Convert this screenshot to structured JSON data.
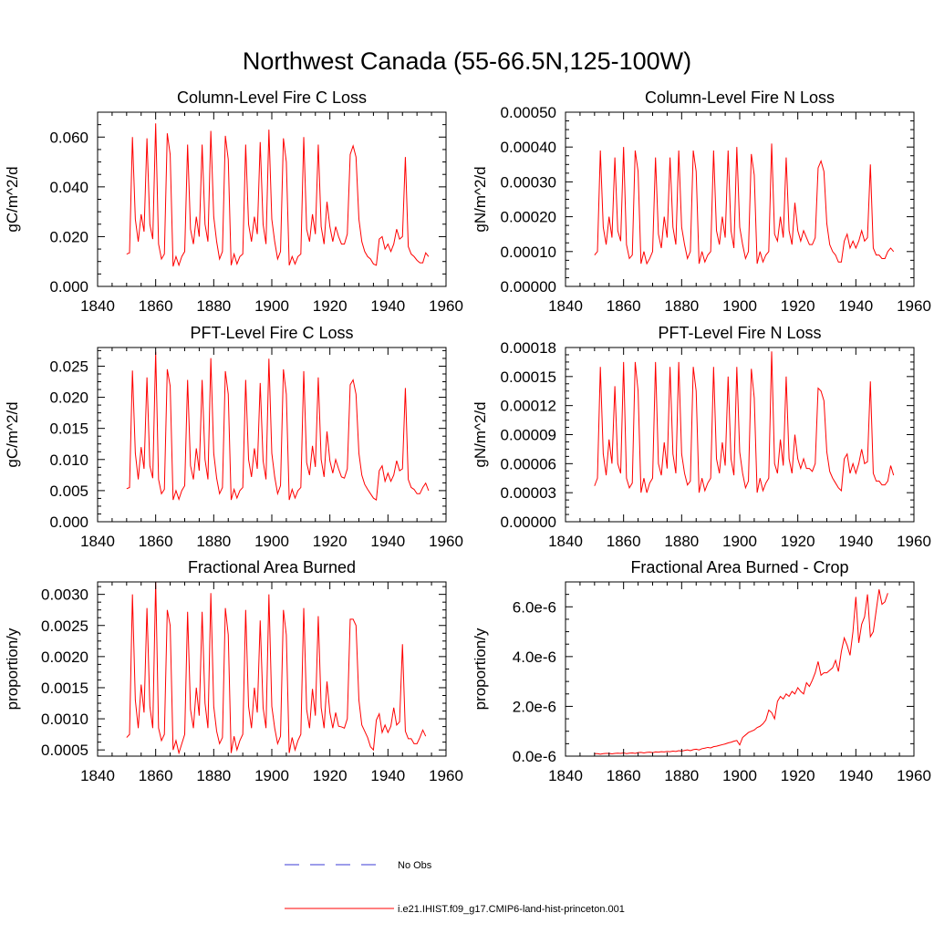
{
  "title": "Northwest Canada (55-66.5N,125-100W)",
  "legend": {
    "obs_label": "No Obs",
    "obs_color": "#3b3bd6",
    "model_label": "i.e21.IHIST.f09_g17.CMIP6-land-hist-princeton.001",
    "model_color": "#ff0000"
  },
  "chart_data": [
    {
      "type": "line",
      "title": "Column-Level Fire C Loss",
      "ylabel": "gC/m^2/d",
      "xlim": [
        1840,
        1960
      ],
      "ylim": [
        0,
        0.07
      ],
      "x_ticks": [
        "1840",
        "1860",
        "1880",
        "1900",
        "1920",
        "1940",
        "1960"
      ],
      "y_ticks": [
        {
          "v": 0.0,
          "label": "0.000"
        },
        {
          "v": 0.02,
          "label": "0.020"
        },
        {
          "v": 0.04,
          "label": "0.040"
        },
        {
          "v": 0.06,
          "label": "0.060"
        }
      ],
      "x_start": 1850,
      "series": [
        {
          "color": "#ff0000",
          "values": [
            0.013,
            0.0135,
            0.06,
            0.027,
            0.018,
            0.029,
            0.022,
            0.0595,
            0.025,
            0.019,
            0.0655,
            0.017,
            0.011,
            0.013,
            0.0615,
            0.053,
            0.008,
            0.012,
            0.0085,
            0.012,
            0.014,
            0.057,
            0.023,
            0.017,
            0.028,
            0.02,
            0.057,
            0.025,
            0.018,
            0.0625,
            0.028,
            0.018,
            0.011,
            0.014,
            0.0605,
            0.051,
            0.0085,
            0.013,
            0.009,
            0.012,
            0.013,
            0.057,
            0.025,
            0.018,
            0.028,
            0.021,
            0.058,
            0.025,
            0.017,
            0.063,
            0.027,
            0.018,
            0.011,
            0.014,
            0.0595,
            0.05,
            0.0085,
            0.012,
            0.009,
            0.012,
            0.013,
            0.06,
            0.023,
            0.018,
            0.029,
            0.021,
            0.057,
            0.024,
            0.017,
            0.034,
            0.024,
            0.018,
            0.024,
            0.02,
            0.017,
            0.017,
            0.021,
            0.053,
            0.0565,
            0.052,
            0.027,
            0.018,
            0.014,
            0.012,
            0.011,
            0.009,
            0.0085,
            0.019,
            0.02,
            0.015,
            0.017,
            0.014,
            0.017,
            0.023,
            0.019,
            0.02,
            0.052,
            0.016,
            0.013,
            0.012,
            0.0105,
            0.0095,
            0.0095,
            0.0135,
            0.012
          ]
        }
      ]
    },
    {
      "type": "line",
      "title": "Column-Level Fire N Loss",
      "ylabel": "gN/m^2/d",
      "xlim": [
        1840,
        1960
      ],
      "ylim": [
        0,
        0.0005
      ],
      "x_ticks": [
        "1840",
        "1860",
        "1880",
        "1900",
        "1920",
        "1940",
        "1960"
      ],
      "y_ticks": [
        {
          "v": 0.0,
          "label": "0.00000"
        },
        {
          "v": 0.0001,
          "label": "0.00010"
        },
        {
          "v": 0.0002,
          "label": "0.00020"
        },
        {
          "v": 0.0003,
          "label": "0.00030"
        },
        {
          "v": 0.0004,
          "label": "0.00040"
        },
        {
          "v": 0.0005,
          "label": "0.00050"
        }
      ],
      "x_start": 1850,
      "series": [
        {
          "color": "#ff0000",
          "values": [
            9e-05,
            0.0001,
            0.00039,
            0.00017,
            0.00012,
            0.0002,
            0.00014,
            0.00037,
            0.00016,
            0.00013,
            0.0004,
            0.00012,
            8e-05,
            9e-05,
            0.00039,
            0.00033,
            6.5e-05,
            0.0001,
            6.5e-05,
            8e-05,
            0.0001,
            0.00037,
            0.00015,
            0.00011,
            0.0002,
            0.00014,
            0.00037,
            0.00017,
            0.00012,
            0.00039,
            0.00017,
            0.00012,
            8e-05,
            0.0001,
            0.00039,
            0.00033,
            6.5e-05,
            0.0001,
            7e-05,
            9e-05,
            0.0001,
            0.00039,
            0.00016,
            0.00012,
            0.0002,
            0.00014,
            0.00039,
            0.00016,
            0.00011,
            0.0004,
            0.00017,
            0.00012,
            8e-05,
            0.0001,
            0.00038,
            0.00032,
            6.5e-05,
            0.0001,
            7e-05,
            9e-05,
            0.0001,
            0.00041,
            0.00015,
            0.00013,
            0.0002,
            0.00014,
            0.00037,
            0.00016,
            0.00012,
            0.00024,
            0.00016,
            0.00013,
            0.00016,
            0.00014,
            0.00012,
            0.00012,
            0.00014,
            0.00034,
            0.00036,
            0.00033,
            0.00018,
            0.00012,
            0.0001,
            9e-05,
            7e-05,
            7e-05,
            0.00013,
            0.00015,
            0.00011,
            0.00013,
            0.00011,
            0.00013,
            0.00016,
            0.00013,
            0.00014,
            0.00035,
            0.00011,
            9e-05,
            9e-05,
            8e-05,
            8e-05,
            0.0001,
            0.00011,
            0.0001
          ]
        }
      ]
    },
    {
      "type": "line",
      "title": "PFT-Level Fire C Loss",
      "ylabel": "gC/m^2/d",
      "xlim": [
        1840,
        1960
      ],
      "ylim": [
        0,
        0.028
      ],
      "x_ticks": [
        "1840",
        "1860",
        "1880",
        "1900",
        "1920",
        "1940",
        "1960"
      ],
      "y_ticks": [
        {
          "v": 0.0,
          "label": "0.000"
        },
        {
          "v": 0.005,
          "label": "0.005"
        },
        {
          "v": 0.01,
          "label": "0.010"
        },
        {
          "v": 0.015,
          "label": "0.015"
        },
        {
          "v": 0.02,
          "label": "0.020"
        },
        {
          "v": 0.025,
          "label": "0.025"
        }
      ],
      "x_start": 1850,
      "series": [
        {
          "color": "#ff0000",
          "values": [
            0.0053,
            0.0055,
            0.0243,
            0.011,
            0.0068,
            0.012,
            0.0085,
            0.0232,
            0.009,
            0.007,
            0.0273,
            0.0068,
            0.0045,
            0.0052,
            0.0245,
            0.0218,
            0.0035,
            0.005,
            0.0036,
            0.005,
            0.0058,
            0.0228,
            0.009,
            0.0068,
            0.0118,
            0.0082,
            0.0228,
            0.01,
            0.0068,
            0.0263,
            0.011,
            0.007,
            0.0045,
            0.0055,
            0.0242,
            0.0205,
            0.0035,
            0.0052,
            0.0038,
            0.005,
            0.0055,
            0.0228,
            0.01,
            0.0072,
            0.0118,
            0.0085,
            0.0223,
            0.0098,
            0.0068,
            0.0262,
            0.011,
            0.0072,
            0.0045,
            0.0058,
            0.0245,
            0.0205,
            0.0035,
            0.0052,
            0.0038,
            0.005,
            0.0055,
            0.0242,
            0.0095,
            0.0075,
            0.0122,
            0.0088,
            0.0232,
            0.01,
            0.0072,
            0.0145,
            0.0098,
            0.0078,
            0.01,
            0.0085,
            0.0072,
            0.007,
            0.0085,
            0.022,
            0.0228,
            0.0205,
            0.011,
            0.0075,
            0.006,
            0.0052,
            0.0045,
            0.0038,
            0.0035,
            0.0082,
            0.009,
            0.0065,
            0.0078,
            0.0065,
            0.0075,
            0.0098,
            0.0082,
            0.0085,
            0.0215,
            0.0068,
            0.0055,
            0.0052,
            0.0045,
            0.0045,
            0.0055,
            0.0062,
            0.005
          ]
        }
      ]
    },
    {
      "type": "line",
      "title": "PFT-Level Fire N Loss",
      "ylabel": "gN/m^2/d",
      "xlim": [
        1840,
        1960
      ],
      "ylim": [
        0,
        0.00018
      ],
      "x_ticks": [
        "1840",
        "1860",
        "1880",
        "1900",
        "1920",
        "1940",
        "1960"
      ],
      "y_ticks": [
        {
          "v": 0.0,
          "label": "0.00000"
        },
        {
          "v": 3e-05,
          "label": "0.00003"
        },
        {
          "v": 6e-05,
          "label": "0.00006"
        },
        {
          "v": 9e-05,
          "label": "0.00009"
        },
        {
          "v": 0.00012,
          "label": "0.00012"
        },
        {
          "v": 0.00015,
          "label": "0.00015"
        },
        {
          "v": 0.00018,
          "label": "0.00018"
        }
      ],
      "x_start": 1850,
      "series": [
        {
          "color": "#ff0000",
          "values": [
            3.7e-05,
            4.5e-05,
            0.00016,
            7e-05,
            4.8e-05,
            8.5e-05,
            6e-05,
            0.00014,
            6e-05,
            5e-05,
            0.000165,
            4.5e-05,
            3.5e-05,
            4e-05,
            0.000165,
            0.000135,
            3e-05,
            4.5e-05,
            3e-05,
            4e-05,
            4.5e-05,
            0.000165,
            6e-05,
            4.8e-05,
            8.2e-05,
            5.5e-05,
            0.00016,
            7e-05,
            5e-05,
            0.000165,
            7e-05,
            5e-05,
            3.8e-05,
            4.2e-05,
            0.00016,
            0.000135,
            3e-05,
            4.5e-05,
            3.2e-05,
            4e-05,
            4.5e-05,
            0.00016,
            6.5e-05,
            5e-05,
            8.2e-05,
            5.8e-05,
            0.00015,
            6.5e-05,
            4.8e-05,
            0.00016,
            7.2e-05,
            5e-05,
            3.5e-05,
            4.2e-05,
            0.000158,
            0.000128,
            3e-05,
            4.5e-05,
            3.2e-05,
            4e-05,
            4.5e-05,
            0.000176,
            6e-05,
            5e-05,
            8.5e-05,
            5.8e-05,
            0.00015,
            6.5e-05,
            5e-05,
            9e-05,
            6.5e-05,
            5.5e-05,
            6.5e-05,
            5.5e-05,
            5.5e-05,
            5.2e-05,
            6e-05,
            0.000138,
            0.000135,
            0.000125,
            7.2e-05,
            5.2e-05,
            4.5e-05,
            4e-05,
            3.5e-05,
            3.2e-05,
            6.5e-05,
            7e-05,
            5e-05,
            6e-05,
            5e-05,
            6e-05,
            7.5e-05,
            6e-05,
            6.2e-05,
            0.000145,
            5e-05,
            4.2e-05,
            4.2e-05,
            3.8e-05,
            3.8e-05,
            4.2e-05,
            5.8e-05,
            4.8e-05
          ]
        }
      ]
    },
    {
      "type": "line",
      "title": "Fractional Area Burned",
      "ylabel": "proportion/y",
      "xlim": [
        1840,
        1960
      ],
      "ylim": [
        0.0004,
        0.0032
      ],
      "x_ticks": [
        "1840",
        "1860",
        "1880",
        "1900",
        "1920",
        "1940",
        "1960"
      ],
      "y_ticks": [
        {
          "v": 0.0005,
          "label": "0.0005"
        },
        {
          "v": 0.001,
          "label": "0.0010"
        },
        {
          "v": 0.0015,
          "label": "0.0015"
        },
        {
          "v": 0.002,
          "label": "0.0020"
        },
        {
          "v": 0.0025,
          "label": "0.0025"
        },
        {
          "v": 0.003,
          "label": "0.0030"
        }
      ],
      "x_start": 1850,
      "series": [
        {
          "color": "#ff0000",
          "values": [
            0.0007,
            0.00075,
            0.003,
            0.0013,
            0.00085,
            0.00155,
            0.0011,
            0.00278,
            0.0012,
            0.00085,
            0.0032,
            0.00085,
            0.00065,
            0.00075,
            0.00275,
            0.0025,
            0.0005,
            0.00065,
            0.00045,
            0.0006,
            0.00075,
            0.00272,
            0.00115,
            0.00085,
            0.0015,
            0.00105,
            0.00272,
            0.00125,
            0.00085,
            0.00302,
            0.0012,
            0.0008,
            0.0006,
            0.0007,
            0.00278,
            0.00235,
            0.00045,
            0.00072,
            0.0005,
            0.00065,
            0.00075,
            0.00275,
            0.0012,
            0.00085,
            0.0015,
            0.0011,
            0.00258,
            0.00118,
            0.00085,
            0.003,
            0.0012,
            0.00085,
            0.0006,
            0.00072,
            0.00275,
            0.00235,
            0.00045,
            0.0007,
            0.0005,
            0.00065,
            0.00075,
            0.00278,
            0.00115,
            0.00085,
            0.00148,
            0.00105,
            0.00265,
            0.00118,
            0.00085,
            0.0016,
            0.0011,
            0.00085,
            0.0011,
            0.00088,
            0.00087,
            0.00085,
            0.001,
            0.0026,
            0.0026,
            0.0025,
            0.0013,
            0.0009,
            0.0008,
            0.0007,
            0.00055,
            0.0005,
            0.00098,
            0.00108,
            0.00078,
            0.0009,
            0.00078,
            0.00088,
            0.00118,
            0.0009,
            0.00095,
            0.0022,
            0.0008,
            0.00068,
            0.00068,
            0.0006,
            0.0006,
            0.0007,
            0.00082,
            0.00072
          ]
        }
      ]
    },
    {
      "type": "line",
      "title": "Fractional Area Burned - Crop",
      "ylabel": "proportion/y",
      "xlim": [
        1840,
        1960
      ],
      "ylim": [
        0,
        7e-06
      ],
      "x_ticks": [
        "1840",
        "1860",
        "1880",
        "1900",
        "1920",
        "1940",
        "1960"
      ],
      "y_ticks": [
        {
          "v": 0.0,
          "label": "0.0e-6"
        },
        {
          "v": 2e-06,
          "label": "2.0e-6"
        },
        {
          "v": 4e-06,
          "label": "4.0e-6"
        },
        {
          "v": 6e-06,
          "label": "6.0e-6"
        }
      ],
      "x_start": 1850,
      "series": [
        {
          "color": "#ff0000",
          "values": [
            1e-07,
            1e-07,
            8e-08,
            1e-07,
            1.1e-07,
            1.1e-07,
            9e-08,
            1.1e-07,
            1.2e-07,
            1.1e-07,
            1.3e-07,
            1e-07,
            1.2e-07,
            1.3e-07,
            1.1e-07,
            1.4e-07,
            1.5e-07,
            1.3e-07,
            1.5e-07,
            1.6e-07,
            1.4e-07,
            1.7e-07,
            1.6e-07,
            1.8e-07,
            1.7e-07,
            1.9e-07,
            1.8e-07,
            2e-07,
            1.9e-07,
            2.2e-07,
            2e-07,
            2.3e-07,
            2.5e-07,
            2.2e-07,
            2.6e-07,
            2.8e-07,
            2.5e-07,
            3e-07,
            3.2e-07,
            3.5e-07,
            3.3e-07,
            3.8e-07,
            4e-07,
            4.3e-07,
            4.6e-07,
            4.9e-07,
            5.3e-07,
            5.6e-07,
            6e-07,
            6.3e-07,
            4.5e-07,
            7.5e-07,
            8.5e-07,
            9.5e-07,
            1e-06,
            1.05e-06,
            1.15e-06,
            1.2e-06,
            1.3e-06,
            1.45e-06,
            1.85e-06,
            1.75e-06,
            1.5e-06,
            2.2e-06,
            2.4e-06,
            2.3e-06,
            2.5e-06,
            2.4e-06,
            2.6e-06,
            2.5e-06,
            2.75e-06,
            2.6e-06,
            2.5e-06,
            2.95e-06,
            2.8e-06,
            3.05e-06,
            3.35e-06,
            3.8e-06,
            3.25e-06,
            3.35e-06,
            3.35e-06,
            3.45e-06,
            3.55e-06,
            3.85e-06,
            3.4e-06,
            4.2e-06,
            4.75e-06,
            4.45e-06,
            4.05e-06,
            5e-06,
            6.4e-06,
            4.55e-06,
            5.3e-06,
            5.6e-06,
            6.5e-06,
            4.8e-06,
            5e-06,
            5.85e-06,
            6.7e-06,
            6.1e-06,
            6.2e-06,
            6.55e-06
          ]
        }
      ]
    }
  ]
}
